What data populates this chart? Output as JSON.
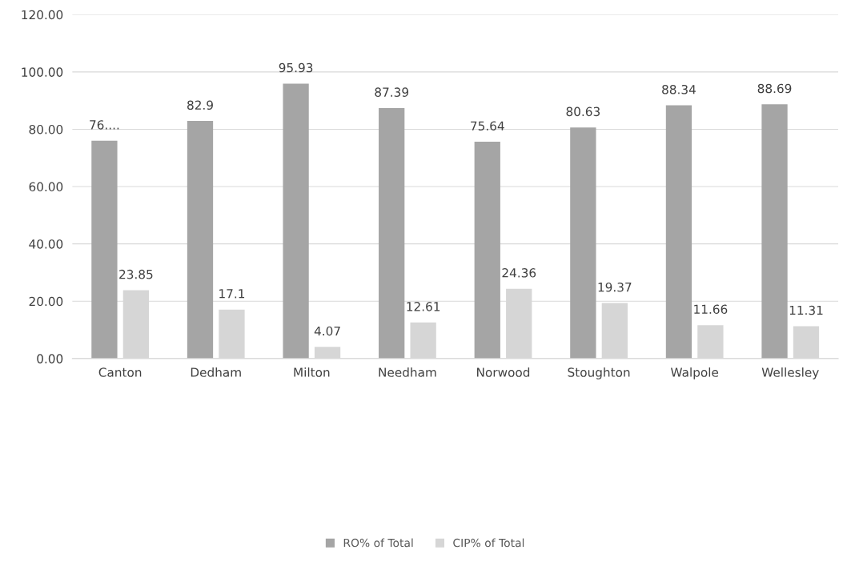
{
  "chart_data": {
    "type": "bar",
    "categories": [
      "Canton",
      "Dedham",
      "Milton",
      "Needham",
      "Norwood",
      "Stoughton",
      "Walpole",
      "Wellesley"
    ],
    "series": [
      {
        "name": "RO% of Total",
        "color": "#a5a5a5",
        "values": [
          76,
          82.9,
          95.93,
          87.39,
          75.64,
          80.63,
          88.34,
          88.69
        ],
        "value_labels": [
          "76....",
          "82.9",
          "95.93",
          "87.39",
          "75.64",
          "80.63",
          "88.34",
          "88.69"
        ]
      },
      {
        "name": "CIP% of Total",
        "color": "#d6d6d6",
        "values": [
          23.85,
          17.1,
          4.07,
          12.61,
          24.36,
          19.37,
          11.66,
          11.31
        ],
        "value_labels": [
          "23.85",
          "17.1",
          "4.07",
          "12.61",
          "24.36",
          "19.37",
          "11.66",
          "11.31"
        ]
      }
    ],
    "ylim": [
      0,
      120
    ],
    "yticks": [
      {
        "value": 0,
        "label": "0.00"
      },
      {
        "value": 20,
        "label": "20.00"
      },
      {
        "value": 40,
        "label": "40.00"
      },
      {
        "value": 60,
        "label": "60.00"
      },
      {
        "value": 80,
        "label": "80.00"
      },
      {
        "value": 100,
        "label": "100.00"
      },
      {
        "value": 120,
        "label": "120.00"
      }
    ],
    "grid": "y",
    "legend": "bottom"
  }
}
